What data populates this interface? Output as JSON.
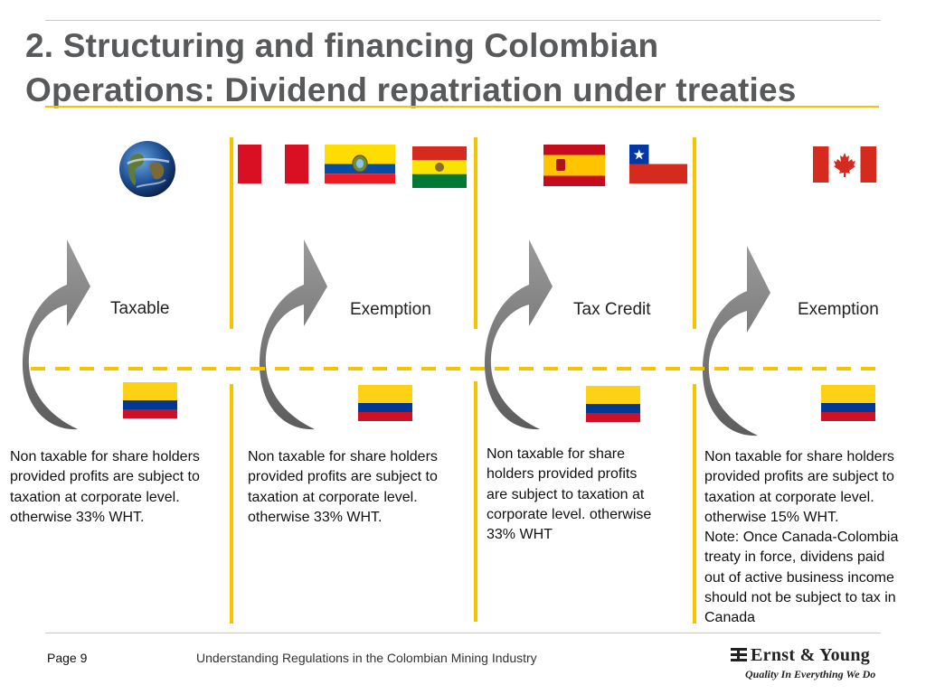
{
  "slide": {
    "title_line1": "2. Structuring and financing Colombian",
    "title_line2": "Operations: Dividend repatriation under treaties",
    "accent_color": "#f5c400",
    "title_color": "#58595b"
  },
  "columns": [
    {
      "label": "Taxable",
      "flags": [
        "world-globe"
      ],
      "bottom_flag": "colombia-flag",
      "description": [
        "Non taxable for share holders",
        "provided profits are subject to",
        "taxation at corporate level.",
        "otherwise 33% WHT."
      ]
    },
    {
      "label": "Exemption",
      "flags": [
        "peru-flag",
        "ecuador-flag",
        "bolivia-flag"
      ],
      "bottom_flag": "colombia-flag",
      "description": [
        "Non taxable for share holders",
        "provided profits are subject to",
        "taxation at corporate level.",
        "otherwise 33% WHT."
      ]
    },
    {
      "label": "Tax Credit",
      "flags": [
        "spain-flag",
        "chile-flag"
      ],
      "bottom_flag": "colombia-flag",
      "description": [
        "Non taxable for share",
        "holders provided profits",
        "are subject to taxation at",
        "corporate level. otherwise",
        "33% WHT"
      ]
    },
    {
      "label": "Exemption",
      "flags": [
        "canada-flag"
      ],
      "bottom_flag": "colombia-flag",
      "description": [
        "Non taxable for share holders",
        "provided profits are subject to",
        "taxation at corporate level.",
        "otherwise 15% WHT.",
        "Note: Once Canada-Colombia",
        "treaty in force, dividens paid",
        "out of active business income",
        "should not be subject to tax in",
        "Canada"
      ]
    }
  ],
  "footer": {
    "page": "Page 9",
    "title": "Understanding Regulations in the Colombian Mining Industry",
    "logo_name": "Ernst & Young",
    "logo_tagline": "Quality In Everything We Do"
  }
}
